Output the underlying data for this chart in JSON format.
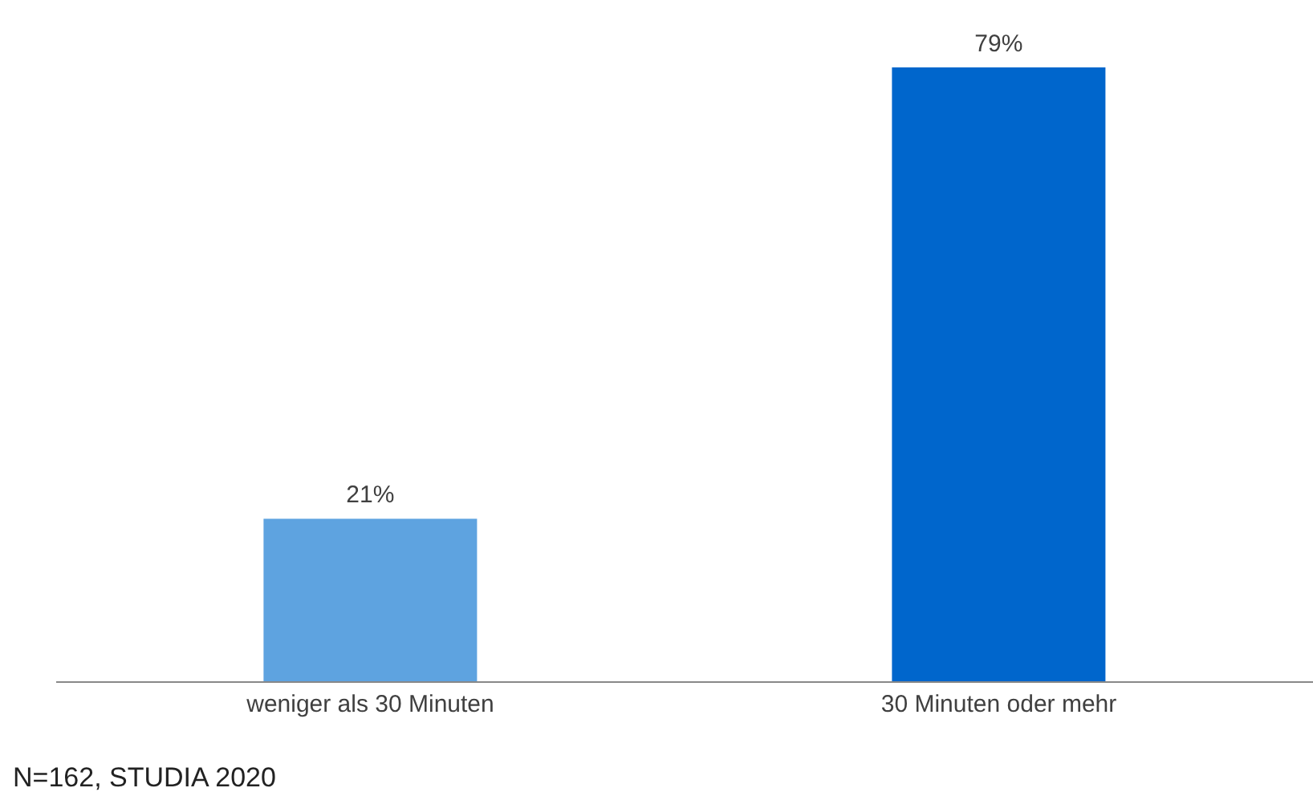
{
  "chart_data": {
    "type": "bar",
    "categories": [
      "weniger als 30 Minuten",
      "30 Minuten oder mehr"
    ],
    "values": [
      21,
      79
    ],
    "colors": [
      "#5ea3e0",
      "#0066cc"
    ],
    "value_labels": [
      "21%",
      "79%"
    ],
    "tick_labels": "x",
    "annotations": [
      "N=162, STUDIA 2020"
    ]
  }
}
